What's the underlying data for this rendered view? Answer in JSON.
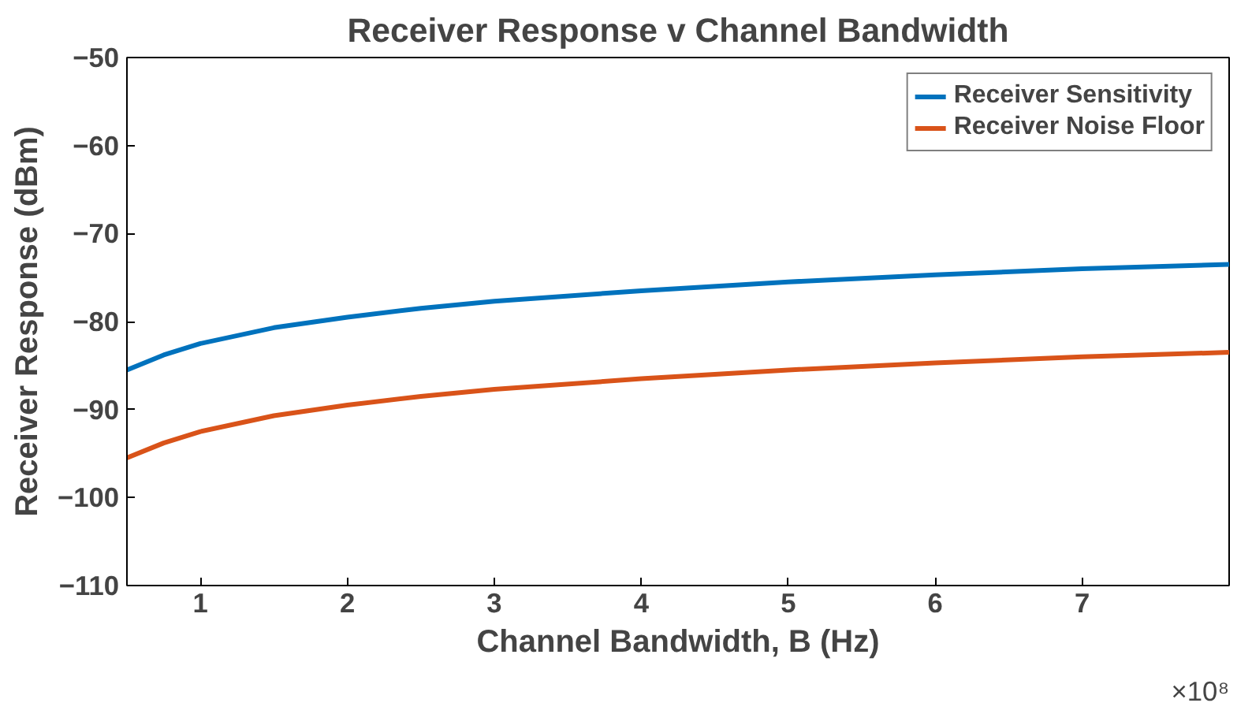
{
  "chart_data": {
    "type": "line",
    "title": "Receiver Response v Channel Bandwidth",
    "xlabel": "Channel Bandwidth, B (Hz)",
    "ylabel": "Receiver Response (dBm)",
    "x": [
      0.5,
      0.75,
      1,
      1.5,
      2,
      2.5,
      3,
      4,
      5,
      6,
      7,
      8
    ],
    "series": [
      {
        "name": "Receiver Sensitivity",
        "color": "#0072bd",
        "values": [
          -85.5,
          -83.8,
          -82.5,
          -80.7,
          -79.5,
          -78.5,
          -77.7,
          -76.5,
          -75.5,
          -74.7,
          -74.0,
          -73.5
        ]
      },
      {
        "name": "Receiver Noise Floor",
        "color": "#d95319",
        "values": [
          -95.5,
          -93.8,
          -92.5,
          -90.7,
          -89.5,
          -88.5,
          -87.7,
          -86.5,
          -85.5,
          -84.7,
          -84.0,
          -83.5
        ]
      }
    ],
    "xlim": [
      0.5,
      8
    ],
    "xticks": [
      1,
      2,
      3,
      4,
      5,
      6,
      7
    ],
    "ylim": [
      -110,
      -50
    ],
    "yticks": [
      -110,
      -100,
      -90,
      -80,
      -70,
      -60,
      -50
    ],
    "annotations": [
      "×10⁸"
    ],
    "legend": "top right",
    "grid": false,
    "line_style": "solid"
  }
}
